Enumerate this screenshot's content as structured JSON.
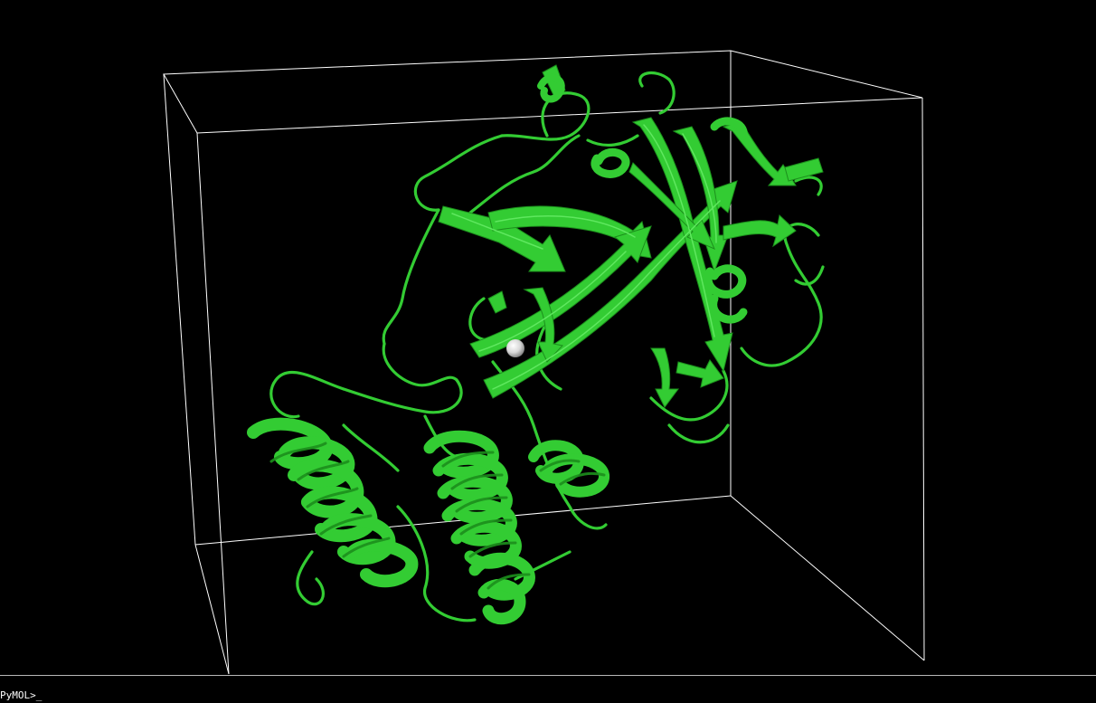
{
  "app": {
    "name": "PyMOL"
  },
  "command_line": {
    "prompt": "PyMOL>",
    "cursor": "_"
  },
  "scene": {
    "background_color": "#000000",
    "cartoon_color": "#33cc33",
    "cartoon_shadow_color": "#1c8f1c",
    "ion_color": "#e6e6e6",
    "bounding_box_color": "#ffffff",
    "representation": "cartoon",
    "shown_objects": [
      "protein-cartoon",
      "metal-ion-sphere",
      "bounding-box"
    ]
  }
}
